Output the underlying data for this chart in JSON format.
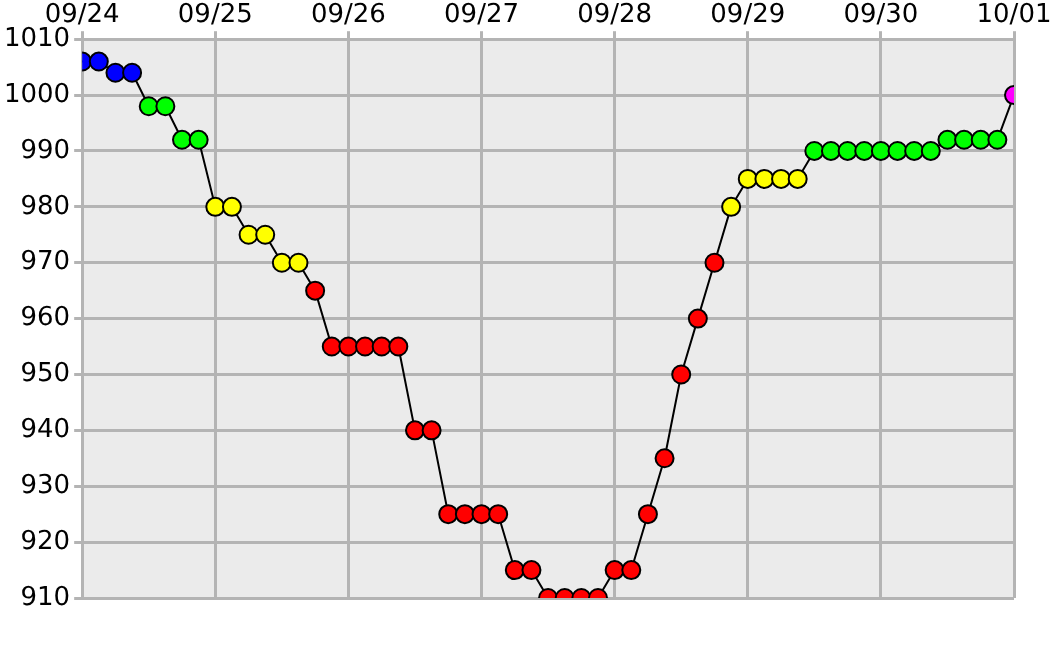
{
  "chart_data": {
    "type": "line",
    "x": [
      "--09-24T00:00",
      "--09-24T03:00",
      "--09-24T06:00",
      "--09-24T09:00",
      "--09-24T12:00",
      "--09-24T15:00",
      "--09-24T18:00",
      "--09-24T21:00",
      "--09-25T00:00",
      "--09-25T03:00",
      "--09-25T06:00",
      "--09-25T09:00",
      "--09-25T12:00",
      "--09-25T15:00",
      "--09-25T18:00",
      "--09-25T21:00",
      "--09-26T00:00",
      "--09-26T03:00",
      "--09-26T06:00",
      "--09-26T09:00",
      "--09-26T12:00",
      "--09-26T15:00",
      "--09-26T18:00",
      "--09-26T21:00",
      "--09-27T00:00",
      "--09-27T03:00",
      "--09-27T06:00",
      "--09-27T09:00",
      "--09-27T12:00",
      "--09-27T15:00",
      "--09-27T18:00",
      "--09-27T21:00",
      "--09-28T00:00",
      "--09-28T03:00",
      "--09-28T06:00",
      "--09-28T09:00",
      "--09-28T12:00",
      "--09-28T15:00",
      "--09-28T18:00",
      "--09-28T21:00",
      "--09-29T00:00",
      "--09-29T03:00",
      "--09-29T06:00",
      "--09-29T09:00",
      "--09-29T12:00",
      "--09-29T15:00",
      "--09-29T18:00",
      "--09-29T21:00",
      "--09-30T00:00",
      "--09-30T03:00",
      "--09-30T06:00",
      "--09-30T09:00",
      "--09-30T12:00",
      "--09-30T15:00",
      "--09-30T18:00",
      "--09-30T21:00",
      "--10-01T00:00"
    ],
    "series": [
      {
        "color": "#000000",
        "values": [
          1006,
          1006,
          1004,
          1004,
          998,
          998,
          992,
          992,
          980,
          980,
          975,
          975,
          970,
          970,
          965,
          955,
          955,
          955,
          955,
          955,
          940,
          940,
          925,
          925,
          925,
          925,
          915,
          915,
          910,
          910,
          910,
          910,
          915,
          915,
          925,
          935,
          950,
          960,
          970,
          980,
          985,
          985,
          985,
          985,
          990,
          990,
          990,
          990,
          990,
          990,
          990,
          990,
          992,
          992,
          992,
          992,
          1000
        ],
        "colors": [
          "#0000ff",
          "#0000ff",
          "#0000ff",
          "#0000ff",
          "#00ff00",
          "#00ff00",
          "#00ff00",
          "#00ff00",
          "#ffff00",
          "#ffff00",
          "#ffff00",
          "#ffff00",
          "#ffff00",
          "#ffff00",
          "#ff0000",
          "#ff0000",
          "#ff0000",
          "#ff0000",
          "#ff0000",
          "#ff0000",
          "#ff0000",
          "#ff0000",
          "#ff0000",
          "#ff0000",
          "#ff0000",
          "#ff0000",
          "#ff0000",
          "#ff0000",
          "#ff0000",
          "#ff0000",
          "#ff0000",
          "#ff0000",
          "#ff0000",
          "#ff0000",
          "#ff0000",
          "#ff0000",
          "#ff0000",
          "#ff0000",
          "#ff0000",
          "#ffff00",
          "#ffff00",
          "#ffff00",
          "#ffff00",
          "#ffff00",
          "#00ff00",
          "#00ff00",
          "#00ff00",
          "#00ff00",
          "#00ff00",
          "#00ff00",
          "#00ff00",
          "#00ff00",
          "#00ff00",
          "#00ff00",
          "#00ff00",
          "#00ff00",
          "#ff00ff"
        ]
      }
    ],
    "xlim": [
      "--09-24",
      "--10-01"
    ],
    "xticks": [
      {
        "value": "--09-24",
        "label": "09/24"
      },
      {
        "value": "--09-25",
        "label": "09/25"
      },
      {
        "value": "--09-26",
        "label": "09/26"
      },
      {
        "value": "--09-27",
        "label": "09/27"
      },
      {
        "value": "--09-28",
        "label": "09/28"
      },
      {
        "value": "--09-29",
        "label": "09/29"
      },
      {
        "value": "--09-30",
        "label": "09/30"
      },
      {
        "value": "--10-01",
        "label": "10/01"
      }
    ],
    "ylim": [
      910,
      1010
    ],
    "yticks": [
      910,
      920,
      930,
      940,
      950,
      960,
      970,
      980,
      990,
      1000,
      1010
    ],
    "grid": true,
    "legend": false,
    "marker": "circle",
    "line_style": "solid"
  }
}
